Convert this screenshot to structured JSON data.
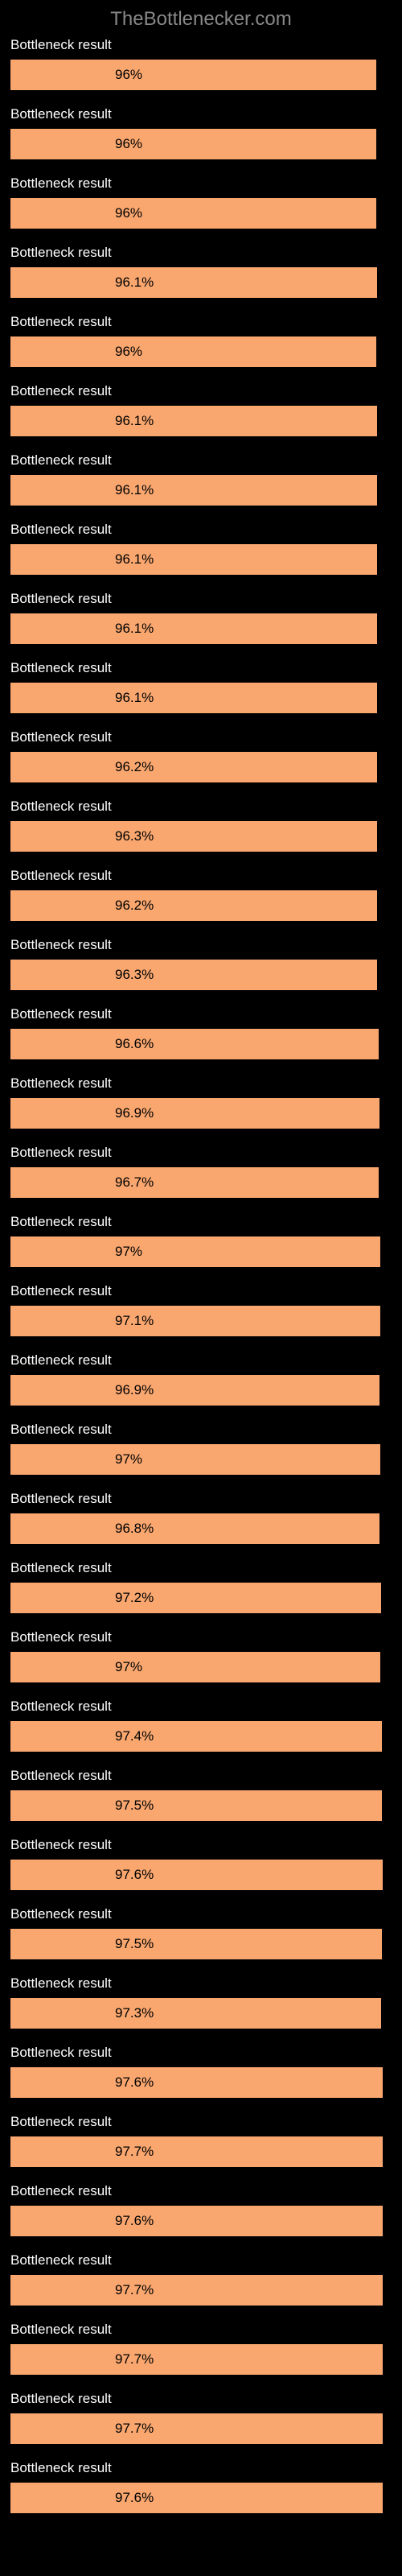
{
  "header": {
    "title": "TheBottlenecker.com"
  },
  "rows": [
    {
      "label": "Bottleneck result",
      "value": "96%",
      "width": 96.0
    },
    {
      "label": "Bottleneck result",
      "value": "96%",
      "width": 96.0
    },
    {
      "label": "Bottleneck result",
      "value": "96%",
      "width": 96.0
    },
    {
      "label": "Bottleneck result",
      "value": "96.1%",
      "width": 96.1
    },
    {
      "label": "Bottleneck result",
      "value": "96%",
      "width": 96.0
    },
    {
      "label": "Bottleneck result",
      "value": "96.1%",
      "width": 96.1
    },
    {
      "label": "Bottleneck result",
      "value": "96.1%",
      "width": 96.1
    },
    {
      "label": "Bottleneck result",
      "value": "96.1%",
      "width": 96.1
    },
    {
      "label": "Bottleneck result",
      "value": "96.1%",
      "width": 96.1
    },
    {
      "label": "Bottleneck result",
      "value": "96.1%",
      "width": 96.1
    },
    {
      "label": "Bottleneck result",
      "value": "96.2%",
      "width": 96.2
    },
    {
      "label": "Bottleneck result",
      "value": "96.3%",
      "width": 96.3
    },
    {
      "label": "Bottleneck result",
      "value": "96.2%",
      "width": 96.2
    },
    {
      "label": "Bottleneck result",
      "value": "96.3%",
      "width": 96.3
    },
    {
      "label": "Bottleneck result",
      "value": "96.6%",
      "width": 96.6
    },
    {
      "label": "Bottleneck result",
      "value": "96.9%",
      "width": 96.9
    },
    {
      "label": "Bottleneck result",
      "value": "96.7%",
      "width": 96.7
    },
    {
      "label": "Bottleneck result",
      "value": "97%",
      "width": 97.0
    },
    {
      "label": "Bottleneck result",
      "value": "97.1%",
      "width": 97.1
    },
    {
      "label": "Bottleneck result",
      "value": "96.9%",
      "width": 96.9
    },
    {
      "label": "Bottleneck result",
      "value": "97%",
      "width": 97.0
    },
    {
      "label": "Bottleneck result",
      "value": "96.8%",
      "width": 96.8
    },
    {
      "label": "Bottleneck result",
      "value": "97.2%",
      "width": 97.2
    },
    {
      "label": "Bottleneck result",
      "value": "97%",
      "width": 97.0
    },
    {
      "label": "Bottleneck result",
      "value": "97.4%",
      "width": 97.4
    },
    {
      "label": "Bottleneck result",
      "value": "97.5%",
      "width": 97.5
    },
    {
      "label": "Bottleneck result",
      "value": "97.6%",
      "width": 97.6
    },
    {
      "label": "Bottleneck result",
      "value": "97.5%",
      "width": 97.5
    },
    {
      "label": "Bottleneck result",
      "value": "97.3%",
      "width": 97.3
    },
    {
      "label": "Bottleneck result",
      "value": "97.6%",
      "width": 97.6
    },
    {
      "label": "Bottleneck result",
      "value": "97.7%",
      "width": 97.7
    },
    {
      "label": "Bottleneck result",
      "value": "97.6%",
      "width": 97.6
    },
    {
      "label": "Bottleneck result",
      "value": "97.7%",
      "width": 97.7
    },
    {
      "label": "Bottleneck result",
      "value": "97.7%",
      "width": 97.7
    },
    {
      "label": "Bottleneck result",
      "value": "97.7%",
      "width": 97.7
    },
    {
      "label": "Bottleneck result",
      "value": "97.6%",
      "width": 97.6
    }
  ],
  "styling": {
    "bar_color": "#f9a76f",
    "background_color": "#000000",
    "label_color": "#ffffff",
    "title_color": "#888888",
    "percentage_color": "#000000"
  }
}
